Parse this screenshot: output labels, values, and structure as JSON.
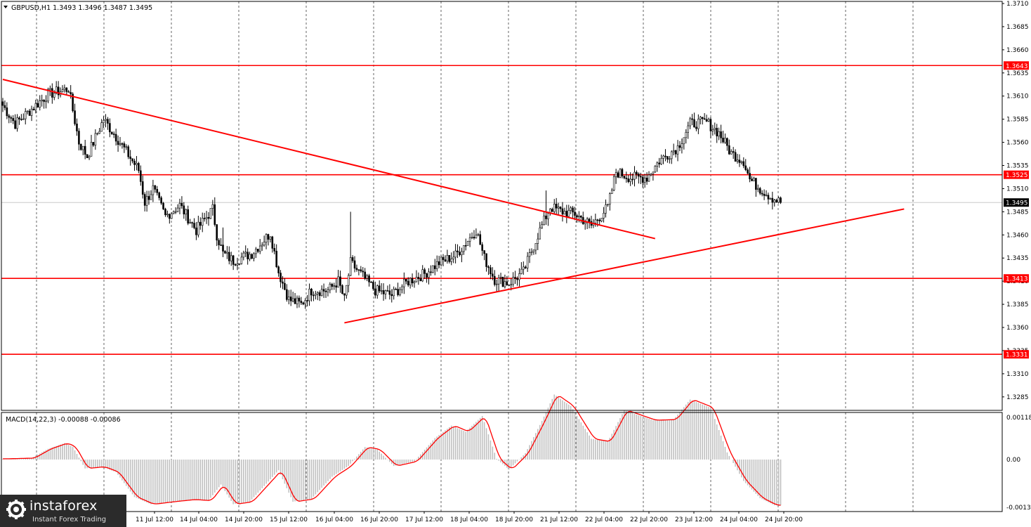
{
  "header": {
    "symbol_line": "GBPUSD,H1  1.3493 1.3496 1.3487 1.3495",
    "macd_line": "MACD(14,22,3) -0.00088 -0.00086"
  },
  "logo": {
    "name": "instaforex",
    "tagline": "Instant Forex Trading"
  },
  "colors": {
    "level": "#ff0000",
    "trendline": "#ff0000",
    "candle": "#000000",
    "histogram": "#c0c0c0",
    "signal": "#ff0000",
    "grid": "#000000"
  },
  "chart_data": [
    {
      "type": "candlestick",
      "symbol": "GBPUSD",
      "timeframe": "H1",
      "ylim": [
        1.3275,
        1.371
      ],
      "y_ticks": [
        "1.3710",
        "1.3685",
        "1.3660",
        "1.3635",
        "1.3610",
        "1.3585",
        "1.3560",
        "1.3535",
        "1.3510",
        "1.3485",
        "1.3460",
        "1.3435",
        "1.3410",
        "1.3385",
        "1.3360",
        "1.3335",
        "1.3310",
        "1.3285"
      ],
      "x_ticks": [
        "11 Jul 12:00",
        "14 Jul 04:00",
        "14 Jul 20:00",
        "15 Jul 12:00",
        "16 Jul 04:00",
        "16 Jul 20:00",
        "17 Jul 12:00",
        "18 Jul 04:00",
        "18 Jul 20:00",
        "21 Jul 12:00",
        "22 Jul 04:00",
        "22 Jul 20:00",
        "23 Jul 12:00",
        "24 Jul 04:00",
        "24 Jul 20:00"
      ],
      "levels": [
        {
          "value": 1.3643,
          "label": "1.3643"
        },
        {
          "value": 1.3525,
          "label": "1.3525"
        },
        {
          "value": 1.3413,
          "label": "1.3413"
        },
        {
          "value": 1.3331,
          "label": "1.3331"
        }
      ],
      "current_price": {
        "value": 1.3495,
        "label": "1.3495"
      },
      "trendlines": [
        {
          "name": "descending",
          "from": {
            "bar": 0,
            "price": 1.3628
          },
          "to": {
            "bar": 317,
            "price": 1.3456
          }
        },
        {
          "name": "ascending",
          "from": {
            "bar": 166,
            "price": 1.3365
          },
          "to": {
            "bar": 438,
            "price": 1.3488
          }
        }
      ],
      "path": [
        [
          0,
          1.36
        ],
        [
          6,
          1.358
        ],
        [
          16,
          1.36
        ],
        [
          22,
          1.3612
        ],
        [
          32,
          1.3618
        ],
        [
          37,
          1.356
        ],
        [
          41,
          1.3545
        ],
        [
          49,
          1.3585
        ],
        [
          56,
          1.3563
        ],
        [
          66,
          1.353
        ],
        [
          69,
          1.3495
        ],
        [
          73,
          1.351
        ],
        [
          79,
          1.348
        ],
        [
          86,
          1.3492
        ],
        [
          94,
          1.3465
        ],
        [
          102,
          1.3488
        ],
        [
          104,
          1.346
        ],
        [
          107,
          1.344
        ],
        [
          112,
          1.3432
        ],
        [
          121,
          1.344
        ],
        [
          130,
          1.3462
        ],
        [
          134,
          1.342
        ],
        [
          139,
          1.339
        ],
        [
          145,
          1.3385
        ],
        [
          150,
          1.34
        ],
        [
          158,
          1.34
        ],
        [
          163,
          1.341
        ],
        [
          166,
          1.339
        ],
        [
          169,
          1.343
        ],
        [
          173,
          1.342
        ],
        [
          181,
          1.34
        ],
        [
          189,
          1.3395
        ],
        [
          197,
          1.341
        ],
        [
          205,
          1.3418
        ],
        [
          212,
          1.343
        ],
        [
          220,
          1.3438
        ],
        [
          230,
          1.3465
        ],
        [
          234,
          1.3435
        ],
        [
          239,
          1.3412
        ],
        [
          246,
          1.3408
        ],
        [
          253,
          1.342
        ],
        [
          260,
          1.346
        ],
        [
          266,
          1.349
        ],
        [
          272,
          1.3485
        ],
        [
          278,
          1.3483
        ],
        [
          286,
          1.347
        ],
        [
          294,
          1.349
        ],
        [
          298,
          1.3528
        ],
        [
          305,
          1.3522
        ],
        [
          313,
          1.3522
        ],
        [
          319,
          1.354
        ],
        [
          328,
          1.3555
        ],
        [
          334,
          1.358
        ],
        [
          342,
          1.3582
        ],
        [
          348,
          1.357
        ],
        [
          354,
          1.3548
        ],
        [
          360,
          1.354
        ],
        [
          363,
          1.352
        ],
        [
          368,
          1.351
        ],
        [
          374,
          1.35
        ],
        [
          378,
          1.3495
        ]
      ],
      "spikes": [
        {
          "bar": 169,
          "high": 1.3485
        },
        {
          "bar": 107,
          "high": 1.3468
        },
        {
          "bar": 264,
          "high": 1.3508
        }
      ]
    },
    {
      "type": "histogram",
      "name": "MACD(14,22,3)",
      "values_text": "-0.00088 -0.00086",
      "ylim": [
        -0.00135,
        0.00118
      ],
      "y_ticks": [
        "0.00118",
        "0.00",
        "-0.00135"
      ],
      "macd": [
        [
          0,
          2e-05
        ],
        [
          14,
          4e-05
        ],
        [
          22,
          0.0003
        ],
        [
          30,
          0.00046
        ],
        [
          34,
          0.00036
        ],
        [
          40,
          -0.00025
        ],
        [
          48,
          -0.0002
        ],
        [
          55,
          -0.00035
        ],
        [
          64,
          -0.00105
        ],
        [
          72,
          -0.00125
        ],
        [
          82,
          -0.00118
        ],
        [
          92,
          -0.00112
        ],
        [
          100,
          -0.00115
        ],
        [
          106,
          -0.0007
        ],
        [
          112,
          -0.00125
        ],
        [
          120,
          -0.00118
        ],
        [
          134,
          -0.0003
        ],
        [
          141,
          -0.00118
        ],
        [
          150,
          -0.0011
        ],
        [
          160,
          -0.00048
        ],
        [
          168,
          -0.00018
        ],
        [
          176,
          0.00035
        ],
        [
          182,
          0.00028
        ],
        [
          190,
          -0.00018
        ],
        [
          200,
          -5e-05
        ],
        [
          210,
          0.0006
        ],
        [
          218,
          0.00095
        ],
        [
          225,
          0.00078
        ],
        [
          233,
          0.00122
        ],
        [
          240,
          2e-05
        ],
        [
          246,
          -0.00028
        ],
        [
          254,
          0.00018
        ],
        [
          262,
          0.00108
        ],
        [
          268,
          0.00182
        ],
        [
          276,
          0.0015
        ],
        [
          286,
          0.00058
        ],
        [
          294,
          0.0005
        ],
        [
          302,
          0.00138
        ],
        [
          316,
          0.0011
        ],
        [
          326,
          0.00112
        ],
        [
          334,
          0.00168
        ],
        [
          344,
          0.00145
        ],
        [
          352,
          0.0002
        ],
        [
          360,
          -0.0006
        ],
        [
          368,
          -0.00108
        ],
        [
          375,
          -0.00128
        ]
      ]
    }
  ]
}
